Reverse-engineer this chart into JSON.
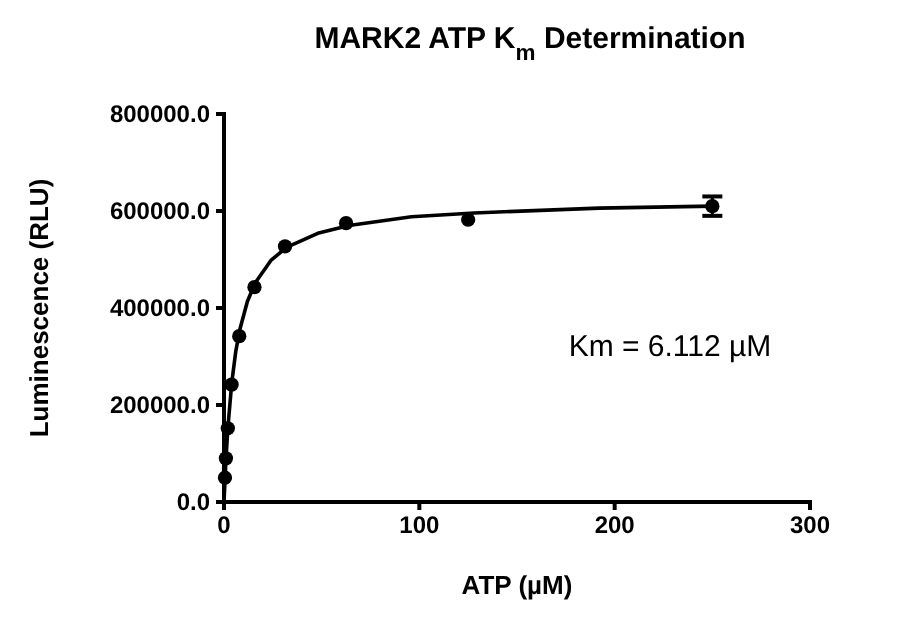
{
  "chart_data": {
    "type": "scatter",
    "title": "MARK2 ATP K$_{m}$ Determination",
    "xlabel": "ATP (µM)",
    "ylabel": "Luminescence (RLU)",
    "annotations": [
      "Km = 6.112 µM"
    ],
    "marker": "circle",
    "grid": false,
    "xlim": [
      0,
      300
    ],
    "xticks": [
      0,
      100,
      200,
      300
    ],
    "ylim": [
      0,
      800000
    ],
    "yticks": [
      {
        "value": 0,
        "label": "0.0"
      },
      {
        "value": 200000,
        "label": "200000.0"
      },
      {
        "value": 400000,
        "label": "400000.0"
      },
      {
        "value": 600000,
        "label": "600000.0"
      },
      {
        "value": 800000,
        "label": "800000.0"
      }
    ],
    "series": [
      {
        "color": "#000000",
        "x": [
          0.49,
          0.98,
          1.95,
          3.9,
          7.8,
          15.6,
          31.25,
          62.5,
          125,
          250
        ],
        "values": [
          50000,
          90000,
          152000,
          242000,
          342000,
          443000,
          527000,
          575000,
          582000,
          610000
        ],
        "errors": [
          null,
          null,
          null,
          null,
          null,
          null,
          null,
          null,
          null,
          20000
        ]
      },
      {
        "type": "line",
        "color": "#000000",
        "marker": "none",
        "line_style": "solid",
        "x": [
          0,
          1,
          2,
          4,
          6,
          8,
          12,
          16,
          24,
          32,
          48,
          64,
          96,
          128,
          192,
          250
        ],
        "values": [
          0,
          88000,
          154000,
          247000,
          310000,
          354000,
          414000,
          452000,
          498000,
          525000,
          554000,
          570000,
          588000,
          596000,
          606000,
          610000
        ]
      }
    ]
  }
}
